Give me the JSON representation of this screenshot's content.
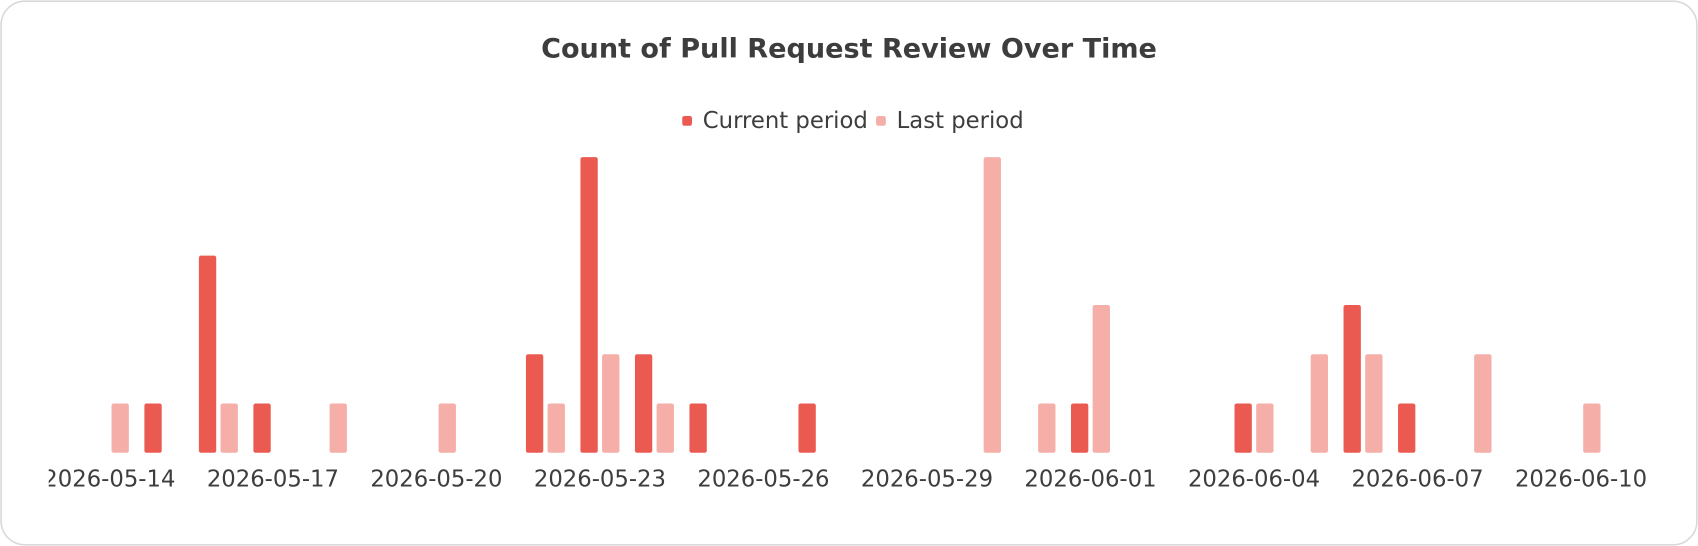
{
  "chart_data": {
    "type": "bar",
    "title": "Count of Pull Request Review Over Time",
    "categories": [
      "2026-05-14",
      null,
      null,
      "2026-05-17",
      null,
      null,
      "2026-05-20",
      null,
      null,
      "2026-05-23",
      null,
      null,
      "2026-05-26",
      null,
      null,
      "2026-05-29",
      null,
      null,
      "2026-06-01",
      null,
      null,
      "2026-06-04",
      null,
      null,
      "2026-06-07",
      null,
      null,
      "2026-06-10"
    ],
    "series": [
      {
        "name": "Current period",
        "color": "#eb5a50",
        "values": [
          0,
          1,
          4,
          1,
          0,
          0,
          0,
          0,
          2,
          6,
          2,
          1,
          0,
          1,
          0,
          0,
          0,
          0,
          1,
          0,
          0,
          1,
          0,
          3,
          1,
          0,
          0,
          0
        ]
      },
      {
        "name": "Last period",
        "color": "#f5aea8",
        "values": [
          1,
          0,
          1,
          0,
          1,
          0,
          1,
          0,
          1,
          2,
          1,
          0,
          0,
          0,
          0,
          0,
          6,
          1,
          3,
          0,
          0,
          1,
          2,
          2,
          0,
          2,
          0,
          1
        ]
      }
    ],
    "ylim": [
      0,
      6
    ],
    "legend": "top"
  }
}
